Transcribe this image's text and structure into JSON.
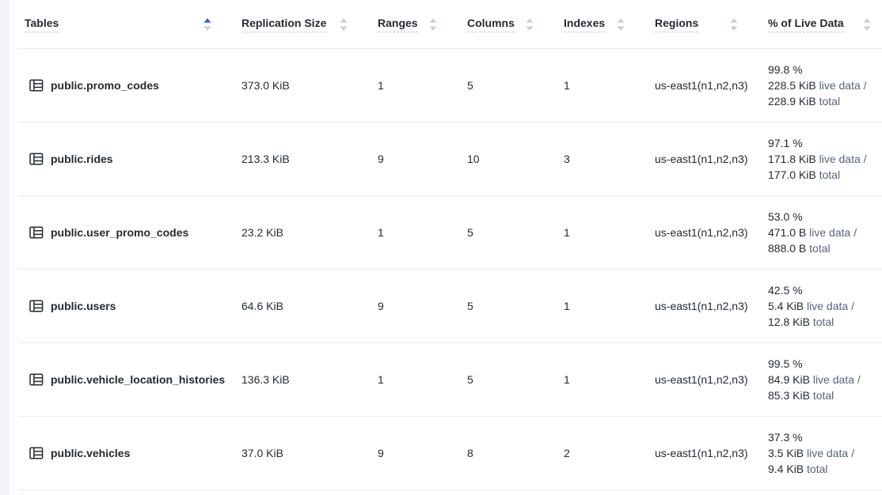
{
  "colors": {
    "accent_blue": "#2b63e0",
    "arrow_muted": "#c7cfe0",
    "text_primary": "#242a35",
    "text_muted": "#56647e",
    "row_border": "#e7ecf3",
    "gutter_bg": "#f2f5f9"
  },
  "table": {
    "columns": [
      {
        "key": "name",
        "label": "Tables",
        "sort": "asc"
      },
      {
        "key": "replication_size",
        "label": "Replication Size",
        "sort": "none"
      },
      {
        "key": "ranges",
        "label": "Ranges",
        "sort": "none"
      },
      {
        "key": "columns",
        "label": "Columns",
        "sort": "none"
      },
      {
        "key": "indexes",
        "label": "Indexes",
        "sort": "none"
      },
      {
        "key": "regions",
        "label": "Regions",
        "sort": "none"
      },
      {
        "key": "live_data",
        "label": "% of Live Data",
        "sort": "none"
      }
    ],
    "live_data_labels": {
      "live_suffix": "live data /",
      "total_suffix": "total"
    },
    "rows": [
      {
        "name": "public.promo_codes",
        "replication_size": "373.0 KiB",
        "ranges": "1",
        "columns": "5",
        "indexes": "1",
        "regions": "us-east1(n1,n2,n3)",
        "live_data": {
          "percent": "99.8 %",
          "live": "228.5 KiB",
          "total": "228.9 KiB"
        }
      },
      {
        "name": "public.rides",
        "replication_size": "213.3 KiB",
        "ranges": "9",
        "columns": "10",
        "indexes": "3",
        "regions": "us-east1(n1,n2,n3)",
        "live_data": {
          "percent": "97.1 %",
          "live": "171.8 KiB",
          "total": "177.0 KiB"
        }
      },
      {
        "name": "public.user_promo_codes",
        "replication_size": "23.2 KiB",
        "ranges": "1",
        "columns": "5",
        "indexes": "1",
        "regions": "us-east1(n1,n2,n3)",
        "live_data": {
          "percent": "53.0 %",
          "live": "471.0 B",
          "total": "888.0 B"
        }
      },
      {
        "name": "public.users",
        "replication_size": "64.6 KiB",
        "ranges": "9",
        "columns": "5",
        "indexes": "1",
        "regions": "us-east1(n1,n2,n3)",
        "live_data": {
          "percent": "42.5 %",
          "live": "5.4 KiB",
          "total": "12.8 KiB"
        }
      },
      {
        "name": "public.vehicle_location_histories",
        "replication_size": "136.3 KiB",
        "ranges": "1",
        "columns": "5",
        "indexes": "1",
        "regions": "us-east1(n1,n2,n3)",
        "live_data": {
          "percent": "99.5 %",
          "live": "84.9 KiB",
          "total": "85.3 KiB"
        }
      },
      {
        "name": "public.vehicles",
        "replication_size": "37.0 KiB",
        "ranges": "9",
        "columns": "8",
        "indexes": "2",
        "regions": "us-east1(n1,n2,n3)",
        "live_data": {
          "percent": "37.3 %",
          "live": "3.5 KiB",
          "total": "9.4 KiB"
        }
      }
    ]
  }
}
